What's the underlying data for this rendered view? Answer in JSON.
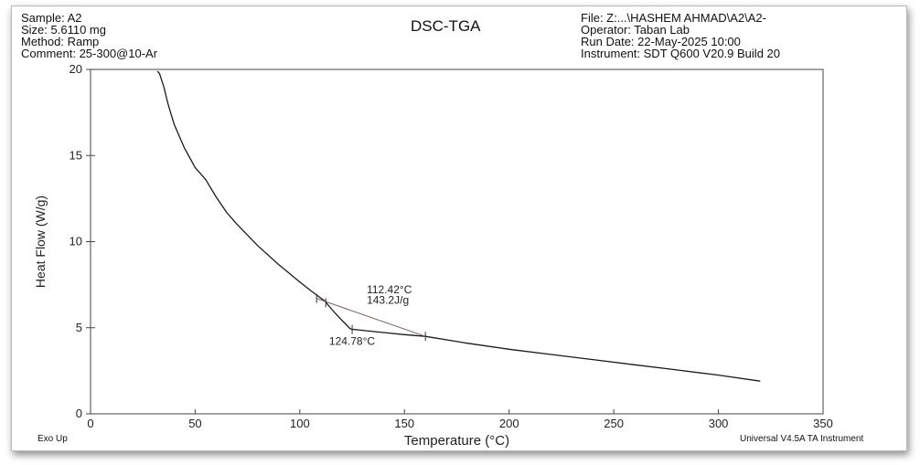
{
  "header": {
    "left": [
      "Sample: A2",
      "Size:  5.6110 mg",
      "Method: Ramp",
      "Comment: 25-300@10-Ar"
    ],
    "title": "DSC-TGA",
    "right": [
      "File: Z:...\\HASHEM AHMAD\\A2\\A2-",
      "Operator: Taban Lab",
      "Run Date: 22-May-2025 10:00",
      "Instrument: SDT Q600 V20.9 Build 20"
    ]
  },
  "footer": {
    "exo": "Exo Up",
    "software": "Universal V4.5A TA Instrument"
  },
  "chart_data": {
    "type": "line",
    "title": "DSC-TGA",
    "xlabel": "Temperature (°C)",
    "ylabel": "Heat Flow (W/g)",
    "xlim": [
      0,
      350
    ],
    "ylim": [
      0,
      20
    ],
    "xticks": [
      0,
      50,
      100,
      150,
      200,
      250,
      300,
      350
    ],
    "yticks": [
      0,
      5,
      10,
      15,
      20
    ],
    "grid": false,
    "series": [
      {
        "x": [
          32,
          33,
          35,
          37,
          40,
          45,
          50,
          55,
          60,
          65,
          70,
          80,
          90,
          100,
          105,
          108,
          110,
          112,
          113,
          115,
          118,
          120,
          122,
          124,
          125,
          126,
          130,
          140,
          150,
          160,
          180,
          200,
          220,
          240,
          260,
          280,
          300,
          320
        ],
        "y": [
          19.9,
          19.75,
          19.0,
          18.0,
          16.8,
          15.4,
          14.3,
          13.6,
          12.6,
          11.7,
          11.0,
          9.75,
          8.65,
          7.65,
          7.18,
          6.9,
          6.72,
          6.55,
          6.4,
          6.1,
          5.7,
          5.45,
          5.2,
          4.95,
          4.9,
          4.9,
          4.85,
          4.72,
          4.6,
          4.5,
          4.1,
          3.75,
          3.45,
          3.15,
          2.85,
          2.55,
          2.25,
          1.9
        ]
      }
    ],
    "annotations": {
      "baseline": [
        [
          108,
          6.7
        ],
        [
          160,
          4.5
        ]
      ],
      "markers": [
        [
          108,
          6.7
        ],
        [
          112.4,
          6.45
        ],
        [
          125,
          4.9
        ],
        [
          160,
          4.5
        ]
      ],
      "labels": [
        {
          "text": "112.42°C",
          "x": 132,
          "y": 7.0
        },
        {
          "text": "143.2J/g",
          "x": 132,
          "y": 6.4
        },
        {
          "text": "124.78°C",
          "x": 114,
          "y": 4.0
        }
      ]
    }
  }
}
